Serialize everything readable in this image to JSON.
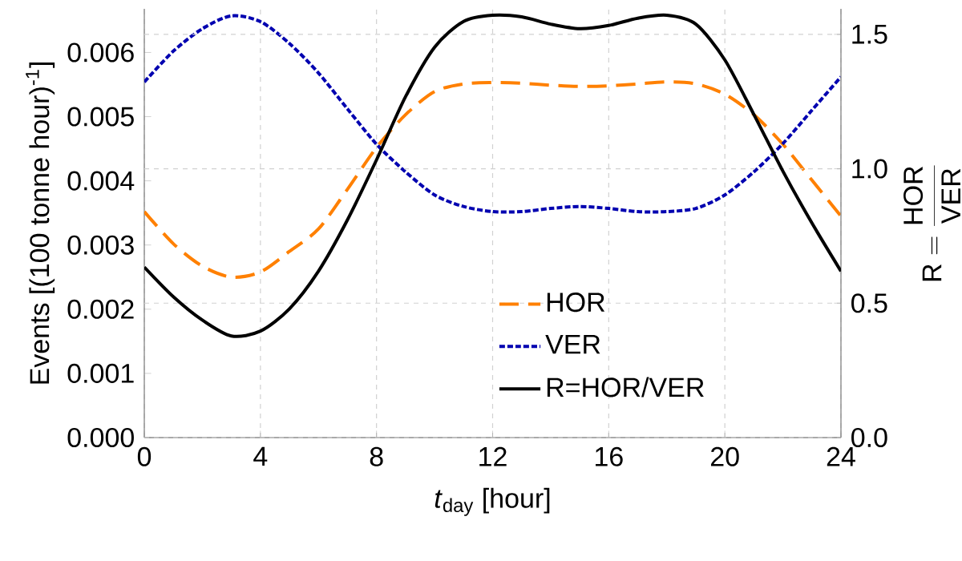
{
  "chart_data": {
    "type": "line",
    "xlabel": "*t*$_{day}$ [hour]",
    "ylabel": "Events [(100 tonne hour)$^{-1}$]",
    "y2label": "\\mathrm{R}=\\frac{\\mathrm{HOR}}{\\mathrm{VER}}",
    "x": [
      0,
      1,
      2,
      3,
      4,
      5,
      6,
      7,
      8,
      9,
      10,
      11,
      12,
      13,
      14,
      15,
      16,
      17,
      18,
      19,
      20,
      21,
      22,
      23,
      24
    ],
    "series": [
      {
        "name": "HOR",
        "color": "#ff8000",
        "line_style": "dashed",
        "values": [
          0.00352,
          0.00302,
          0.00267,
          0.0025,
          0.00258,
          0.0029,
          0.00325,
          0.00387,
          0.00452,
          0.00503,
          0.00539,
          0.00551,
          0.00553,
          0.00552,
          0.00549,
          0.00547,
          0.00548,
          0.00551,
          0.00554,
          0.00551,
          0.00535,
          0.00503,
          0.00457,
          0.00401,
          0.00345
        ]
      },
      {
        "name": "VER",
        "color": "#0000b0",
        "line_style": "dotted",
        "values": [
          0.00554,
          0.00602,
          0.00637,
          0.00657,
          0.00648,
          0.00614,
          0.00568,
          0.00512,
          0.00457,
          0.00414,
          0.00378,
          0.0036,
          0.00352,
          0.00352,
          0.00357,
          0.0036,
          0.00357,
          0.00352,
          0.00352,
          0.00357,
          0.00378,
          0.00414,
          0.00458,
          0.0051,
          0.00562
        ]
      },
      {
        "name": "R=HOR/VER",
        "color": "#000000",
        "line_style": "solid",
        "axis": "y2",
        "values": [
          0.634,
          0.524,
          0.437,
          0.378,
          0.396,
          0.479,
          0.619,
          0.81,
          1.033,
          1.268,
          1.452,
          1.548,
          1.571,
          1.565,
          1.538,
          1.521,
          1.533,
          1.56,
          1.571,
          1.538,
          1.405,
          1.202,
          0.991,
          0.798,
          0.619
        ]
      }
    ],
    "xlim": [
      0,
      24
    ],
    "xticks": [
      0,
      4,
      8,
      12,
      16,
      20,
      24
    ],
    "ylim": [
      0,
      0.00668
    ],
    "yticks": [
      {
        "value": 0,
        "label": "0.000"
      },
      0.001,
      0.002,
      0.003,
      0.004,
      0.005,
      0.006
    ],
    "y2lim": [
      0,
      1.595
    ],
    "y2ticks": [
      {
        "value": 0,
        "label": "0.0"
      },
      0.5,
      {
        "value": 1,
        "label": "1.0"
      },
      1.5
    ],
    "grid": true,
    "legend": "bottom right",
    "marker": "none"
  }
}
